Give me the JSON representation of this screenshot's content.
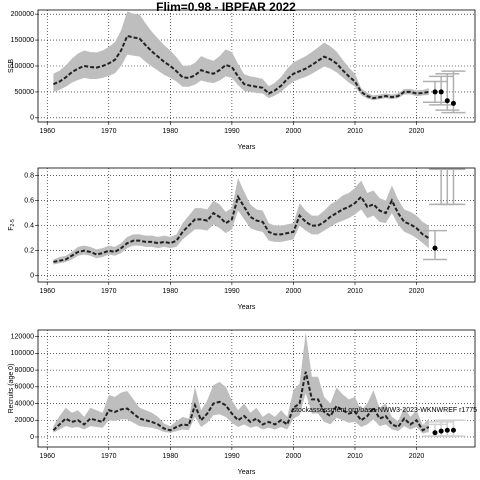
{
  "chart_data": [
    {
      "type": "line",
      "title": "Flim=0.98 - IBPFAR 2022",
      "xlabel": "Years",
      "ylabel": "SSB",
      "x": [
        1961,
        1962,
        1963,
        1964,
        1965,
        1966,
        1967,
        1968,
        1969,
        1970,
        1971,
        1972,
        1973,
        1974,
        1975,
        1976,
        1977,
        1978,
        1979,
        1980,
        1981,
        1982,
        1983,
        1984,
        1985,
        1986,
        1987,
        1988,
        1989,
        1990,
        1991,
        1992,
        1993,
        1994,
        1995,
        1996,
        1997,
        1998,
        1999,
        2000,
        2001,
        2002,
        2003,
        2004,
        2005,
        2006,
        2007,
        2008,
        2009,
        2010,
        2011,
        2012,
        2013,
        2014,
        2015,
        2016,
        2017,
        2018,
        2019,
        2020,
        2021,
        2022
      ],
      "series": [
        {
          "color": "#222222",
          "values": [
            65000,
            70000,
            78000,
            88000,
            95000,
            100000,
            98000,
            97000,
            100000,
            105000,
            112000,
            130000,
            158000,
            155000,
            153000,
            140000,
            128000,
            118000,
            108000,
            100000,
            90000,
            78000,
            77000,
            82000,
            92000,
            88000,
            85000,
            92000,
            102000,
            98000,
            80000,
            65000,
            62000,
            60000,
            58000,
            47000,
            53000,
            62000,
            75000,
            85000,
            90000,
            95000,
            102000,
            110000,
            118000,
            113000,
            105000,
            92000,
            80000,
            70000,
            50000,
            42000,
            38000,
            40000,
            42000,
            40000,
            42000,
            50000,
            50000,
            47000,
            48000,
            50000
          ]
        }
      ],
      "band": {
        "color": "#bebebe",
        "lower": [
          50000,
          54000,
          60000,
          68000,
          73000,
          77000,
          75000,
          75000,
          77000,
          81000,
          86000,
          100000,
          122000,
          120000,
          118000,
          108000,
          99000,
          91000,
          83000,
          77000,
          70000,
          60000,
          60000,
          64000,
          72000,
          69000,
          67000,
          72000,
          80000,
          77000,
          63000,
          52000,
          50000,
          48000,
          47000,
          38000,
          43000,
          50000,
          61000,
          70000,
          75000,
          79000,
          85000,
          92000,
          99000,
          95000,
          88000,
          78000,
          68000,
          60000,
          44000,
          37000,
          34000,
          36000,
          38000,
          36000,
          38000,
          45000,
          45000,
          42000,
          43000,
          44000
        ],
        "upper": [
          85000,
          91000,
          101000,
          114000,
          124000,
          130000,
          127000,
          126000,
          130000,
          137000,
          146000,
          169000,
          205000,
          201000,
          199000,
          182000,
          166000,
          153000,
          140000,
          130000,
          117000,
          101000,
          100000,
          106000,
          119000,
          114000,
          110000,
          119000,
          132000,
          127000,
          104000,
          84000,
          80000,
          78000,
          75000,
          61000,
          68000,
          79000,
          95000,
          107000,
          113000,
          119000,
          127000,
          136000,
          145000,
          138000,
          128000,
          112000,
          97000,
          85000,
          57000,
          48000,
          43000,
          45000,
          47000,
          45000,
          47000,
          56000,
          56000,
          53000,
          54000,
          57000
        ]
      },
      "projection": {
        "x": [
          2023,
          2024,
          2025,
          2026
        ],
        "values": [
          50000,
          50000,
          33000,
          28000
        ],
        "lower": [
          30000,
          25000,
          15000,
          10000
        ],
        "upper": [
          70000,
          80000,
          85000,
          90000
        ],
        "color": "#000000",
        "bar_color": "#b0b0b0"
      },
      "xlim": [
        1958.5,
        2029.5
      ],
      "xticks": [
        1960,
        1970,
        1980,
        1990,
        2000,
        2010,
        2020
      ],
      "ylim": [
        -8000,
        208000
      ],
      "yticks": [
        0,
        50000,
        100000,
        150000,
        200000
      ],
      "grid": true
    },
    {
      "type": "line",
      "xlabel": "Years",
      "ylabel": "F",
      "ylabel_sub": "2-5",
      "x": [
        1961,
        1962,
        1963,
        1964,
        1965,
        1966,
        1967,
        1968,
        1969,
        1970,
        1971,
        1972,
        1973,
        1974,
        1975,
        1976,
        1977,
        1978,
        1979,
        1980,
        1981,
        1982,
        1983,
        1984,
        1985,
        1986,
        1987,
        1988,
        1989,
        1990,
        1991,
        1992,
        1993,
        1994,
        1995,
        1996,
        1997,
        1998,
        1999,
        2000,
        2001,
        2002,
        2003,
        2004,
        2005,
        2006,
        2007,
        2008,
        2009,
        2010,
        2011,
        2012,
        2013,
        2014,
        2015,
        2016,
        2017,
        2018,
        2019,
        2020,
        2021,
        2022
      ],
      "series": [
        {
          "color": "#222222",
          "values": [
            0.11,
            0.12,
            0.13,
            0.16,
            0.19,
            0.2,
            0.19,
            0.17,
            0.18,
            0.2,
            0.19,
            0.22,
            0.26,
            0.28,
            0.28,
            0.27,
            0.27,
            0.26,
            0.27,
            0.26,
            0.28,
            0.35,
            0.4,
            0.45,
            0.45,
            0.44,
            0.5,
            0.47,
            0.42,
            0.45,
            0.63,
            0.55,
            0.47,
            0.44,
            0.43,
            0.35,
            0.33,
            0.33,
            0.34,
            0.35,
            0.48,
            0.43,
            0.4,
            0.4,
            0.43,
            0.47,
            0.5,
            0.53,
            0.55,
            0.58,
            0.63,
            0.55,
            0.57,
            0.52,
            0.5,
            0.6,
            0.5,
            0.43,
            0.41,
            0.38,
            0.33,
            0.3
          ]
        }
      ],
      "band": {
        "color": "#bebebe",
        "lower": [
          0.09,
          0.1,
          0.11,
          0.13,
          0.16,
          0.17,
          0.16,
          0.14,
          0.15,
          0.17,
          0.16,
          0.18,
          0.22,
          0.24,
          0.24,
          0.23,
          0.23,
          0.22,
          0.23,
          0.22,
          0.23,
          0.29,
          0.33,
          0.37,
          0.37,
          0.36,
          0.41,
          0.38,
          0.34,
          0.37,
          0.52,
          0.45,
          0.38,
          0.36,
          0.35,
          0.28,
          0.27,
          0.27,
          0.28,
          0.29,
          0.4,
          0.36,
          0.33,
          0.33,
          0.36,
          0.39,
          0.42,
          0.44,
          0.46,
          0.49,
          0.53,
          0.46,
          0.48,
          0.43,
          0.42,
          0.5,
          0.41,
          0.35,
          0.33,
          0.3,
          0.26,
          0.22
        ],
        "upper": [
          0.13,
          0.15,
          0.16,
          0.19,
          0.23,
          0.24,
          0.23,
          0.21,
          0.22,
          0.24,
          0.23,
          0.26,
          0.31,
          0.33,
          0.33,
          0.32,
          0.32,
          0.31,
          0.32,
          0.31,
          0.33,
          0.42,
          0.48,
          0.54,
          0.54,
          0.53,
          0.6,
          0.57,
          0.51,
          0.54,
          0.78,
          0.67,
          0.57,
          0.53,
          0.52,
          0.42,
          0.4,
          0.4,
          0.41,
          0.42,
          0.58,
          0.52,
          0.48,
          0.48,
          0.52,
          0.57,
          0.6,
          0.64,
          0.66,
          0.7,
          0.76,
          0.66,
          0.68,
          0.62,
          0.6,
          0.72,
          0.61,
          0.53,
          0.51,
          0.48,
          0.43,
          0.4
        ]
      },
      "projection": {
        "x": [
          2023,
          2024,
          2025,
          2026
        ],
        "values": [
          0.22,
          null,
          null,
          null
        ],
        "lower": [
          0.13,
          0.57,
          0.57,
          0.57
        ],
        "upper": [
          0.36,
          0.85,
          0.85,
          0.85
        ],
        "color": "#000000",
        "bar_color": "#b0b0b0"
      },
      "xlim": [
        1958.5,
        2029.5
      ],
      "xticks": [
        1960,
        1970,
        1980,
        1990,
        2000,
        2010,
        2020
      ],
      "ylim": [
        -0.05,
        0.86
      ],
      "yticks": [
        0,
        0.2,
        0.4,
        0.6,
        0.8
      ],
      "grid": true
    },
    {
      "type": "line",
      "xlabel": "Years",
      "ylabel": "Recruits (age 0)",
      "annotation": "stockassessment.org/base-NWW3-2023-WKNWREF r1775",
      "x": [
        1961,
        1962,
        1963,
        1964,
        1965,
        1966,
        1967,
        1968,
        1969,
        1970,
        1971,
        1972,
        1973,
        1974,
        1975,
        1976,
        1977,
        1978,
        1979,
        1980,
        1981,
        1982,
        1983,
        1984,
        1985,
        1986,
        1987,
        1988,
        1989,
        1990,
        1991,
        1992,
        1993,
        1994,
        1995,
        1996,
        1997,
        1998,
        1999,
        2000,
        2001,
        2002,
        2003,
        2004,
        2005,
        2006,
        2007,
        2008,
        2009,
        2010,
        2011,
        2012,
        2013,
        2014,
        2015,
        2016,
        2017,
        2018,
        2019,
        2020,
        2021,
        2022
      ],
      "series": [
        {
          "color": "#222222",
          "values": [
            8000,
            15000,
            22000,
            18000,
            20000,
            15000,
            22000,
            20000,
            18000,
            32000,
            30000,
            33000,
            34000,
            28000,
            22000,
            20000,
            18000,
            15000,
            10000,
            8000,
            12000,
            15000,
            14000,
            38000,
            20000,
            28000,
            40000,
            42000,
            38000,
            28000,
            20000,
            25000,
            18000,
            22000,
            15000,
            18000,
            15000,
            20000,
            15000,
            35000,
            40000,
            78000,
            45000,
            45000,
            30000,
            25000,
            37000,
            32000,
            28000,
            30000,
            20000,
            25000,
            35000,
            22000,
            25000,
            15000,
            12000,
            22000,
            15000,
            20000,
            8000,
            12000
          ]
        }
      ],
      "band": {
        "color": "#bebebe",
        "lower": [
          5000,
          9000,
          13000,
          11000,
          12000,
          9000,
          13000,
          12000,
          11000,
          20000,
          19000,
          21000,
          21000,
          17000,
          13000,
          12000,
          11000,
          9000,
          6000,
          5000,
          7000,
          9000,
          8000,
          24000,
          12000,
          17000,
          26000,
          27000,
          24000,
          17000,
          12000,
          15000,
          11000,
          13000,
          9000,
          11000,
          9000,
          12000,
          9000,
          22000,
          26000,
          52000,
          28000,
          28000,
          18000,
          15000,
          23000,
          20000,
          17000,
          18000,
          12000,
          15000,
          21000,
          13000,
          15000,
          9000,
          7000,
          13000,
          9000,
          12000,
          4000,
          6000
        ],
        "upper": [
          13000,
          25000,
          35000,
          29000,
          32000,
          24000,
          35000,
          32000,
          29000,
          50000,
          48000,
          53000,
          55000,
          45000,
          35000,
          32000,
          29000,
          24000,
          16000,
          13000,
          19000,
          24000,
          22000,
          60000,
          32000,
          44000,
          62000,
          66000,
          60000,
          44000,
          32000,
          40000,
          29000,
          35000,
          24000,
          29000,
          24000,
          32000,
          24000,
          56000,
          64000,
          125000,
          72000,
          72000,
          48000,
          40000,
          59000,
          51000,
          45000,
          48000,
          32000,
          40000,
          56000,
          35000,
          40000,
          24000,
          19000,
          35000,
          24000,
          32000,
          14000,
          22000
        ]
      },
      "projection": {
        "x": [
          2023,
          2024,
          2025,
          2026
        ],
        "values": [
          5000,
          7000,
          8000,
          8000
        ],
        "lower": [
          1000,
          1000,
          1000,
          1000
        ],
        "upper": [
          15000,
          18000,
          20000,
          20000
        ],
        "color": "#000000",
        "bar_color": "#d0d0d0"
      },
      "xlim": [
        1958.5,
        2029.5
      ],
      "xticks": [
        1960,
        1970,
        1980,
        1990,
        2000,
        2010,
        2020
      ],
      "ylim": [
        -12000,
        128000
      ],
      "yticks": [
        0,
        20000,
        40000,
        60000,
        80000,
        100000,
        120000
      ],
      "grid": true
    }
  ]
}
